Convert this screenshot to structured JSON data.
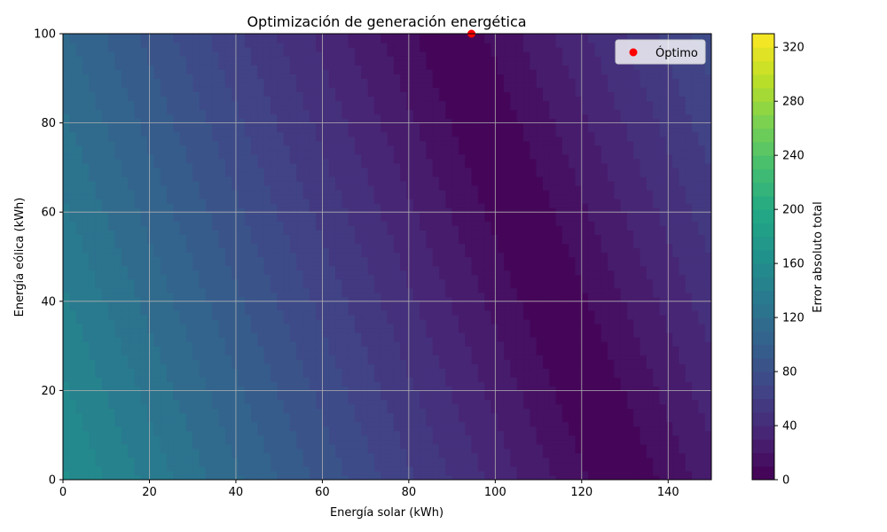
{
  "chart_data": {
    "type": "heatmap",
    "title": "Optimización de generación energética",
    "xlabel": "Energía solar (kWh)",
    "ylabel": "Energía eólica (kWh)",
    "colorbar_label": "Error absoluto total",
    "xlim": [
      0,
      150
    ],
    "ylim": [
      0,
      100
    ],
    "x_ticks": [
      0,
      20,
      40,
      60,
      80,
      100,
      120,
      140
    ],
    "y_ticks": [
      0,
      20,
      40,
      60,
      80,
      100
    ],
    "colorbar_ticks": [
      0,
      40,
      80,
      120,
      160,
      200,
      240,
      280,
      320
    ],
    "colorbar_range": [
      0,
      330
    ],
    "grid": true,
    "colormap": "viridis",
    "surface_model": {
      "description": "error = |1.25*solar + 0.5*wind - 162|",
      "solar_coef": 1.25,
      "wind_coef": 0.5,
      "target": 162
    },
    "series": [
      {
        "name": "Óptimo",
        "type": "point",
        "x": 94.5,
        "y": 100,
        "color": "#ff0000"
      }
    ],
    "legend": {
      "position": "top-right",
      "entries": [
        "Óptimo"
      ]
    }
  }
}
